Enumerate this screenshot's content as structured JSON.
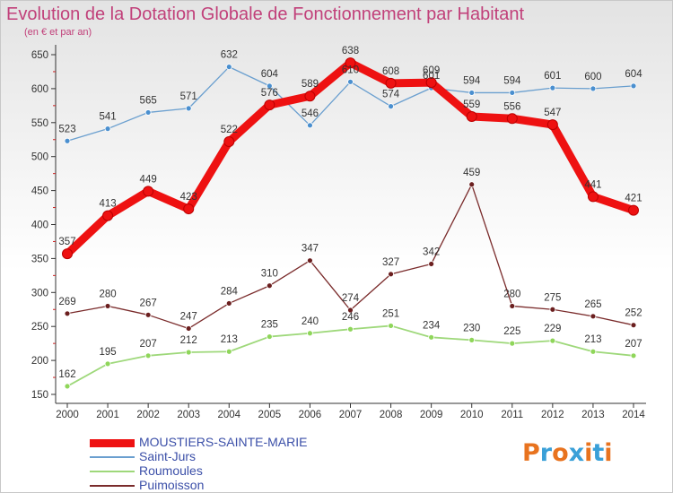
{
  "title": "Evolution de la Dotation Globale de Fonctionnement par Habitant",
  "subtitle": "(en € et par an)",
  "logo": {
    "text": "Proxiti",
    "colors": [
      "#e8731f",
      "#3aa0d8",
      "#e8731f",
      "#3aa0d8",
      "#e8731f",
      "#3aa0d8",
      "#e8731f"
    ]
  },
  "chart_data": {
    "type": "line",
    "x": [
      "2000",
      "2001",
      "2002",
      "2003",
      "2004",
      "2005",
      "2006",
      "2007",
      "2008",
      "2009",
      "2010",
      "2011",
      "2012",
      "2013",
      "2014"
    ],
    "ylim": [
      150,
      650
    ],
    "yticks": [
      150,
      200,
      250,
      300,
      350,
      400,
      450,
      500,
      550,
      600,
      650
    ],
    "grid": false,
    "legend": "bottom-left",
    "series": [
      {
        "name": "MOUSTIERS-SAINTE-MARIE",
        "color": "#ee1111",
        "width": 9,
        "values": [
          357,
          413,
          449,
          423,
          522,
          576,
          589,
          638,
          608,
          609,
          559,
          556,
          547,
          441,
          421
        ]
      },
      {
        "name": "Saint-Jurs",
        "color": "#6a9fcf",
        "width": 1.3,
        "values": [
          523,
          541,
          565,
          571,
          632,
          604,
          546,
          610,
          574,
          601,
          594,
          594,
          601,
          600,
          604
        ]
      },
      {
        "name": "Roumoules",
        "color": "#9ed87a",
        "width": 1.8,
        "values": [
          162,
          195,
          207,
          212,
          213,
          235,
          240,
          246,
          251,
          234,
          230,
          225,
          229,
          213,
          207
        ]
      },
      {
        "name": "Puimoisson",
        "color": "#7a2b2b",
        "width": 1.3,
        "values": [
          269,
          280,
          267,
          247,
          284,
          310,
          347,
          274,
          327,
          342,
          459,
          280,
          275,
          265,
          252
        ]
      }
    ]
  }
}
